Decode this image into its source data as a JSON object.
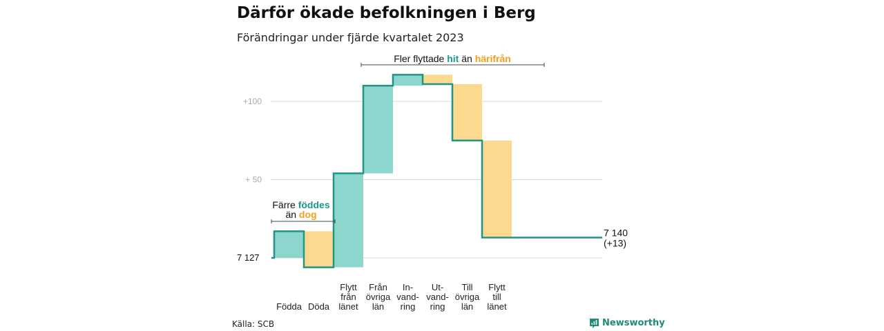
{
  "title": "Därför ökade befolkningen i Berg",
  "subtitle": "Förändringar under fjärde kvartalet 2023",
  "source": "Källa: SCB",
  "brand": "Newsworthy",
  "colors": {
    "positive": "#8dd6cd",
    "negative": "#fbd98f",
    "line": "#1f9585",
    "teal_text": "#18998a",
    "orange_text": "#f29f1c",
    "grid": "#d8d8d8",
    "tick": "#aaaaaa"
  },
  "annotations": {
    "births": {
      "pre": "Färre ",
      "hl1": "föddes",
      "mid": "än ",
      "hl2": "dog"
    },
    "moves": {
      "pre": "Fler flyttade ",
      "hl1": "hit",
      "mid": " än ",
      "hl2": "härifrån"
    }
  },
  "chart_data": {
    "type": "waterfall",
    "start_value": 7127,
    "start_label": "7 127",
    "end_label": "7 140",
    "end_change_label": "(+13)",
    "y_ticks": [
      {
        "value": 50,
        "label": "+  50"
      },
      {
        "value": 100,
        "label": "+100"
      }
    ],
    "ylim": [
      -6,
      120
    ],
    "categories": [
      {
        "label_lines": [
          "Födda"
        ],
        "change": 17
      },
      {
        "label_lines": [
          "Döda"
        ],
        "change": -23
      },
      {
        "label_lines": [
          "Flytt",
          "från",
          "länet"
        ],
        "change": 60
      },
      {
        "label_lines": [
          "Från",
          "övriga",
          "län"
        ],
        "change": 56
      },
      {
        "label_lines": [
          "In-",
          "vand-",
          "ring"
        ],
        "change": 7
      },
      {
        "label_lines": [
          "Ut-",
          "vand-",
          "ring"
        ],
        "change": -6
      },
      {
        "label_lines": [
          "Till",
          "övriga",
          "län"
        ],
        "change": -36
      },
      {
        "label_lines": [
          "Flytt",
          "till",
          "länet"
        ],
        "change": -62
      }
    ]
  }
}
